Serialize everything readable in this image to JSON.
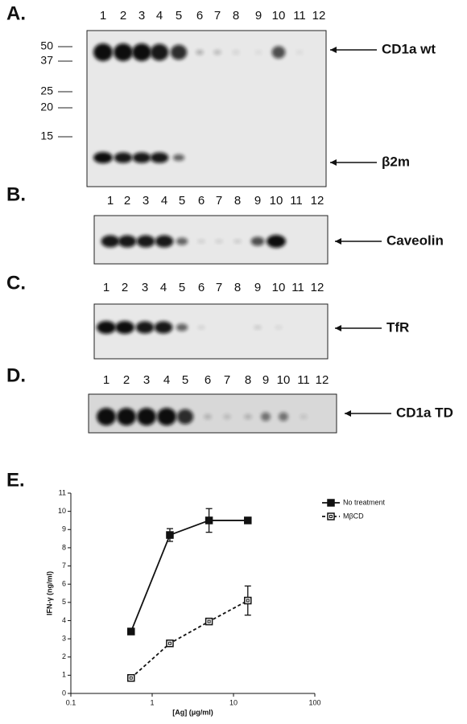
{
  "panels": [
    {
      "label": "A.",
      "lanes": [
        "1",
        "2",
        "3",
        "4",
        "5",
        "6",
        "7",
        "8",
        "9",
        "10",
        "11",
        "12"
      ],
      "markers": [
        "50",
        "37",
        "25",
        "20",
        "15"
      ],
      "bands": [
        "CD1a wt",
        "β2m"
      ]
    },
    {
      "label": "B.",
      "lanes": [
        "1",
        "2",
        "3",
        "4",
        "5",
        "6",
        "7",
        "8",
        "9",
        "10",
        "11",
        "12"
      ],
      "markers": [],
      "bands": [
        "Caveolin"
      ]
    },
    {
      "label": "C.",
      "lanes": [
        "1",
        "2",
        "3",
        "4",
        "5",
        "6",
        "7",
        "8",
        "9",
        "10",
        "11",
        "12"
      ],
      "markers": [],
      "bands": [
        "TfR"
      ]
    },
    {
      "label": "D.",
      "lanes": [
        "1",
        "2",
        "3",
        "4",
        "5",
        "6",
        "7",
        "8",
        "9",
        "10",
        "11",
        "12"
      ],
      "markers": [],
      "bands": [
        "CD1a TD"
      ]
    }
  ],
  "chart_data": {
    "type": "line",
    "panel_label": "E.",
    "x_label": "[Ag] (μg/ml)",
    "y_label": "IFN-γ (ng/ml)",
    "x_scale": "log",
    "xlim": [
      0.1,
      100
    ],
    "xticks": [
      0.1,
      1,
      10,
      100
    ],
    "ylim": [
      0,
      11
    ],
    "yticks": [
      0,
      1,
      2,
      3,
      4,
      5,
      6,
      7,
      8,
      9,
      10,
      11
    ],
    "legend": "upper right",
    "x": [
      0.55,
      1.65,
      5,
      15
    ],
    "series": [
      {
        "name": "No treatment",
        "color": "#111111",
        "dashed": false,
        "filled": true,
        "values": [
          3.4,
          8.7,
          9.5,
          9.5
        ],
        "errors": [
          null,
          0.35,
          0.65,
          0.1
        ]
      },
      {
        "name": "MβCD",
        "color": "#111111",
        "dashed": true,
        "filled": false,
        "values": [
          0.85,
          2.75,
          3.95,
          5.1
        ],
        "errors": [
          null,
          0.1,
          0.15,
          0.8
        ]
      }
    ]
  }
}
